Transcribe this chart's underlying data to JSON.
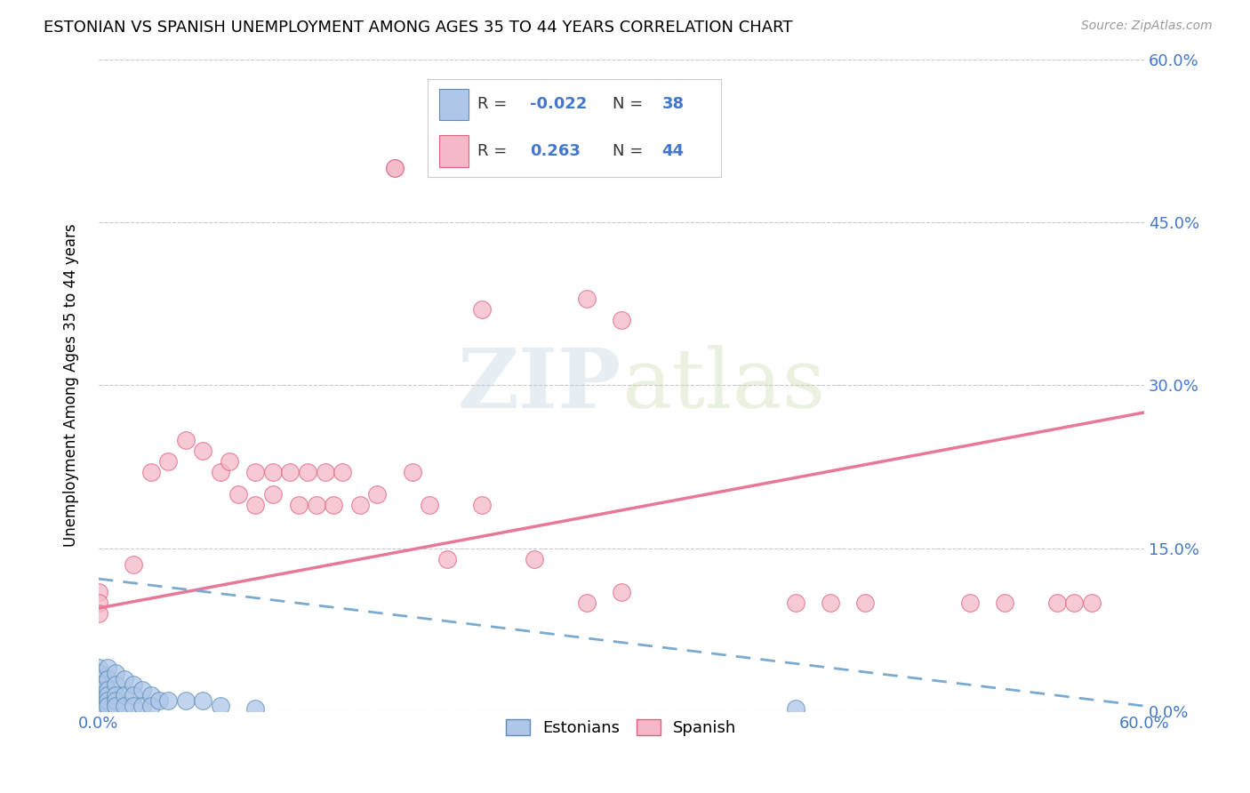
{
  "title": "ESTONIAN VS SPANISH UNEMPLOYMENT AMONG AGES 35 TO 44 YEARS CORRELATION CHART",
  "source": "Source: ZipAtlas.com",
  "ylabel": "Unemployment Among Ages 35 to 44 years",
  "xlim": [
    0.0,
    0.6
  ],
  "ylim": [
    0.0,
    0.6
  ],
  "x_ticks": [
    0.0,
    0.15,
    0.3,
    0.45,
    0.6
  ],
  "x_tick_labels": [
    "0.0%",
    "",
    "",
    "",
    "60.0%"
  ],
  "y_ticks": [
    0.0,
    0.15,
    0.3,
    0.45,
    0.6
  ],
  "y_tick_labels_right": [
    "0.0%",
    "15.0%",
    "30.0%",
    "45.0%",
    "60.0%"
  ],
  "background_color": "#ffffff",
  "grid_color": "#c8c8c8",
  "estonian_color": "#aec6e8",
  "spanish_color": "#f5b8c8",
  "estonian_edge_color": "#5b8db8",
  "spanish_edge_color": "#e06080",
  "estonian_line_color": "#7aaad0",
  "spanish_line_color": "#e87898",
  "legend_R_estonian": "-0.022",
  "legend_N_estonian": "38",
  "legend_R_spanish": "0.263",
  "legend_N_spanish": "44",
  "blue_text_color": "#4477cc",
  "dark_text_color": "#333333",
  "estonian_x": [
    0.0,
    0.0,
    0.0,
    0.0,
    0.0,
    0.0,
    0.0,
    0.0,
    0.0,
    0.0,
    0.005,
    0.005,
    0.005,
    0.005,
    0.005,
    0.005,
    0.01,
    0.01,
    0.01,
    0.01,
    0.01,
    0.015,
    0.015,
    0.015,
    0.02,
    0.02,
    0.02,
    0.025,
    0.025,
    0.03,
    0.03,
    0.035,
    0.04,
    0.05,
    0.06,
    0.07,
    0.09,
    0.4
  ],
  "estonian_y": [
    0.04,
    0.035,
    0.03,
    0.025,
    0.02,
    0.015,
    0.01,
    0.005,
    0.003,
    0.0,
    0.04,
    0.03,
    0.02,
    0.015,
    0.01,
    0.005,
    0.035,
    0.025,
    0.015,
    0.01,
    0.005,
    0.03,
    0.015,
    0.005,
    0.025,
    0.015,
    0.005,
    0.02,
    0.005,
    0.015,
    0.005,
    0.01,
    0.01,
    0.01,
    0.01,
    0.005,
    0.003,
    0.003
  ],
  "spanish_x": [
    0.0,
    0.0,
    0.0,
    0.02,
    0.03,
    0.04,
    0.05,
    0.06,
    0.07,
    0.075,
    0.08,
    0.09,
    0.09,
    0.1,
    0.1,
    0.11,
    0.115,
    0.12,
    0.125,
    0.13,
    0.135,
    0.14,
    0.15,
    0.16,
    0.17,
    0.18,
    0.19,
    0.2,
    0.22,
    0.25,
    0.28,
    0.3,
    0.4,
    0.42,
    0.44,
    0.5,
    0.52,
    0.55,
    0.56,
    0.57,
    0.28,
    0.3,
    0.17,
    0.22
  ],
  "spanish_y": [
    0.11,
    0.1,
    0.09,
    0.135,
    0.22,
    0.23,
    0.25,
    0.24,
    0.22,
    0.23,
    0.2,
    0.22,
    0.19,
    0.22,
    0.2,
    0.22,
    0.19,
    0.22,
    0.19,
    0.22,
    0.19,
    0.22,
    0.19,
    0.2,
    0.5,
    0.22,
    0.19,
    0.14,
    0.19,
    0.14,
    0.1,
    0.11,
    0.1,
    0.1,
    0.1,
    0.1,
    0.1,
    0.1,
    0.1,
    0.1,
    0.38,
    0.36,
    0.5,
    0.37
  ],
  "spa_trend_x0": 0.0,
  "spa_trend_y0": 0.095,
  "spa_trend_x1": 0.6,
  "spa_trend_y1": 0.275,
  "est_trend_x0": 0.0,
  "est_trend_y0": 0.122,
  "est_trend_x1": 0.6,
  "est_trend_y1": 0.005
}
